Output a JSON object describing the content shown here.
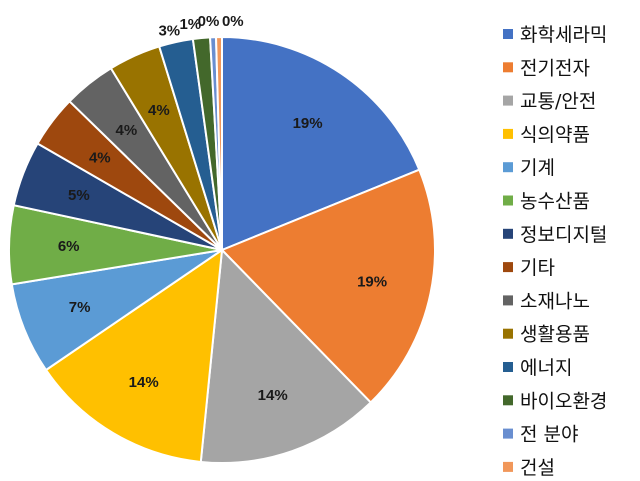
{
  "chart_data": {
    "type": "pie",
    "title": "",
    "legend_position": "right",
    "slices": [
      {
        "label": "화학세라믹",
        "value": 19,
        "value_label": "19%",
        "color": "#4472C4"
      },
      {
        "label": "전기전자",
        "value": 19,
        "value_label": "19%",
        "color": "#ED7D31"
      },
      {
        "label": "교통/안전",
        "value": 14,
        "value_label": "14%",
        "color": "#A5A5A5"
      },
      {
        "label": "식의약품",
        "value": 14,
        "value_label": "14%",
        "color": "#FFC000"
      },
      {
        "label": "기계",
        "value": 7,
        "value_label": "7%",
        "color": "#5B9BD5"
      },
      {
        "label": "농수산품",
        "value": 6,
        "value_label": "6%",
        "color": "#70AD47"
      },
      {
        "label": "정보디지털",
        "value": 5,
        "value_label": "5%",
        "color": "#264478"
      },
      {
        "label": "기타",
        "value": 4,
        "value_label": "4%",
        "color": "#9E480E"
      },
      {
        "label": "소재나노",
        "value": 4,
        "value_label": "4%",
        "color": "#636363"
      },
      {
        "label": "생활용품",
        "value": 4,
        "value_label": "4%",
        "color": "#997300"
      },
      {
        "label": "에너지",
        "value": 2.6,
        "value_label": "3%",
        "color": "#255E91"
      },
      {
        "label": "바이오환경",
        "value": 1.3,
        "value_label": "1%",
        "color": "#43682B"
      },
      {
        "label": "전 분야",
        "value": 0.45,
        "value_label": "0%",
        "color": "#698ED0"
      },
      {
        "label": "건설",
        "value": 0.45,
        "value_label": "0%",
        "color": "#F1975A"
      }
    ]
  }
}
